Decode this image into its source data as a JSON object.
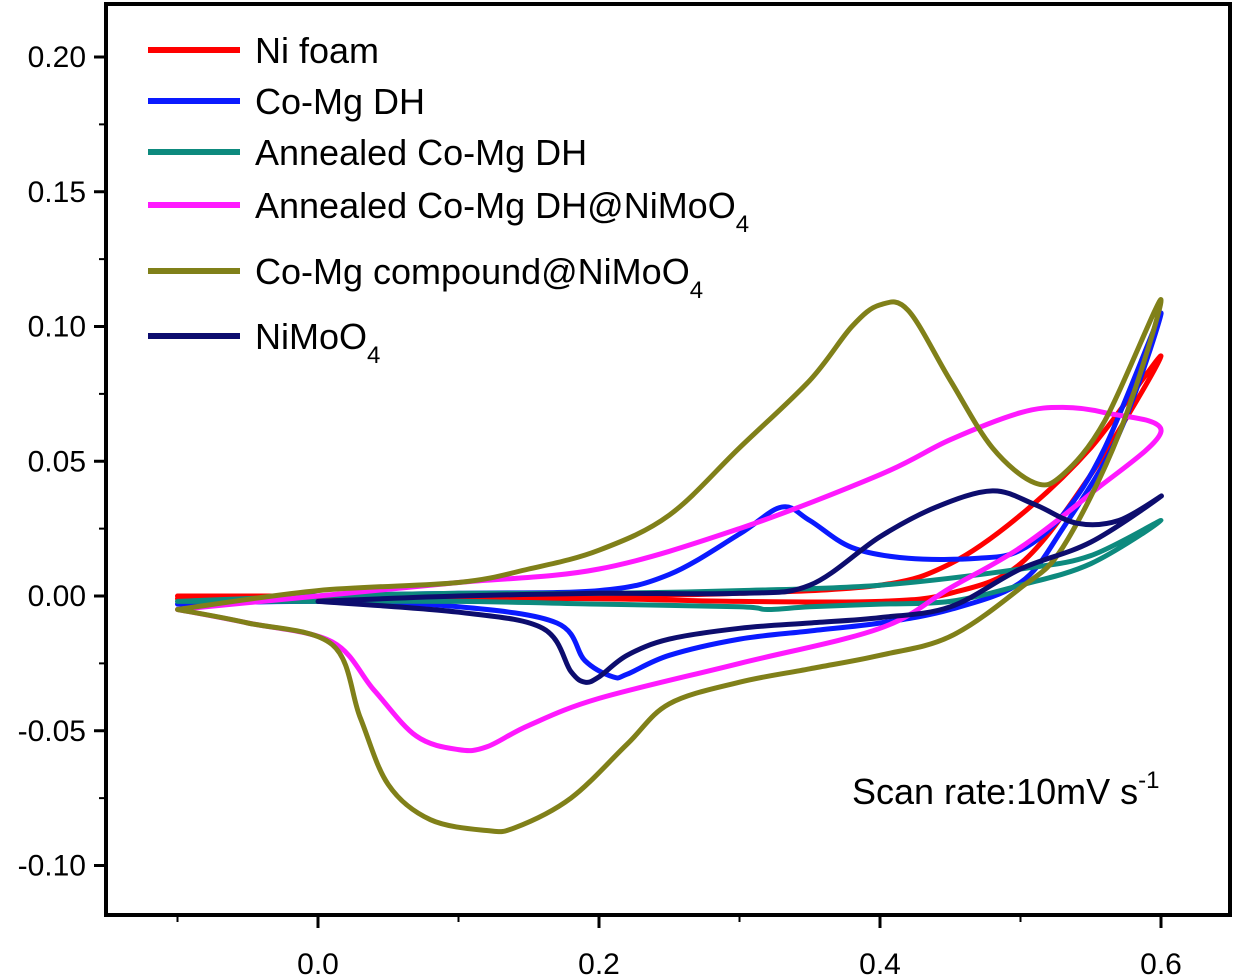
{
  "chart_data": {
    "type": "line",
    "title": "",
    "xlabel": "",
    "ylabel": "",
    "xlim": [
      -0.1,
      0.65
    ],
    "ylim": [
      -0.12,
      0.22
    ],
    "x_ticks": [
      "0.0",
      "0.2",
      "0.4",
      "0.6"
    ],
    "y_ticks": [
      "0.20",
      "0.15",
      "0.10",
      "0.05",
      "0.00",
      "-0.05",
      "-0.10"
    ],
    "x_tick_values": [
      0.0,
      0.2,
      0.4,
      0.6
    ],
    "y_tick_values": [
      0.2,
      0.15,
      0.1,
      0.05,
      0.0,
      -0.05,
      -0.1
    ],
    "grid": false,
    "legend_position": "top-left",
    "annotation": {
      "prefix": "Scan rate:10mV s",
      "sup": "-1"
    },
    "series": [
      {
        "name": "Ni foam",
        "label": "Ni foam",
        "sub": "",
        "color": "#ff0000",
        "points": [
          [
            -0.1,
            0.0
          ],
          [
            0.0,
            0.0
          ],
          [
            0.1,
            0.0
          ],
          [
            0.2,
            0.0
          ],
          [
            0.3,
            0.001
          ],
          [
            0.4,
            0.004
          ],
          [
            0.45,
            0.012
          ],
          [
            0.5,
            0.03
          ],
          [
            0.55,
            0.055
          ],
          [
            0.6,
            0.089
          ],
          [
            0.55,
            0.045
          ],
          [
            0.5,
            0.012
          ],
          [
            0.45,
            0.001
          ],
          [
            0.4,
            -0.002
          ],
          [
            0.3,
            -0.002
          ],
          [
            0.2,
            -0.001
          ],
          [
            0.1,
            -0.001
          ],
          [
            0.0,
            -0.001
          ],
          [
            -0.1,
            -0.001
          ]
        ]
      },
      {
        "name": "Co-Mg DH",
        "label": "Co-Mg DH",
        "sub": "",
        "color": "#0a1aff",
        "points": [
          [
            -0.1,
            -0.003
          ],
          [
            0.0,
            0.0
          ],
          [
            0.1,
            0.001
          ],
          [
            0.2,
            0.002
          ],
          [
            0.25,
            0.008
          ],
          [
            0.3,
            0.023
          ],
          [
            0.33,
            0.033
          ],
          [
            0.35,
            0.028
          ],
          [
            0.38,
            0.018
          ],
          [
            0.42,
            0.014
          ],
          [
            0.47,
            0.014
          ],
          [
            0.5,
            0.017
          ],
          [
            0.53,
            0.03
          ],
          [
            0.56,
            0.055
          ],
          [
            0.6,
            0.105
          ],
          [
            0.57,
            0.06
          ],
          [
            0.53,
            0.025
          ],
          [
            0.5,
            0.005
          ],
          [
            0.45,
            -0.005
          ],
          [
            0.4,
            -0.01
          ],
          [
            0.35,
            -0.013
          ],
          [
            0.3,
            -0.016
          ],
          [
            0.25,
            -0.022
          ],
          [
            0.22,
            -0.029
          ],
          [
            0.21,
            -0.03
          ],
          [
            0.19,
            -0.024
          ],
          [
            0.17,
            -0.01
          ],
          [
            0.1,
            -0.004
          ],
          [
            0.0,
            -0.002
          ],
          [
            -0.1,
            -0.003
          ]
        ]
      },
      {
        "name": "Annealed  Co-Mg DH",
        "label": "Annealed  Co-Mg DH",
        "sub": "",
        "color": "#0d8a7e",
        "points": [
          [
            -0.1,
            -0.002
          ],
          [
            0.0,
            0.0
          ],
          [
            0.1,
            0.001
          ],
          [
            0.2,
            0.001
          ],
          [
            0.3,
            0.002
          ],
          [
            0.4,
            0.004
          ],
          [
            0.5,
            0.01
          ],
          [
            0.55,
            0.015
          ],
          [
            0.6,
            0.028
          ],
          [
            0.55,
            0.012
          ],
          [
            0.5,
            0.004
          ],
          [
            0.45,
            -0.002
          ],
          [
            0.4,
            -0.003
          ],
          [
            0.35,
            -0.004
          ],
          [
            0.32,
            -0.005
          ],
          [
            0.3,
            -0.004
          ],
          [
            0.2,
            -0.003
          ],
          [
            0.1,
            -0.002
          ],
          [
            0.0,
            -0.002
          ],
          [
            -0.1,
            -0.002
          ]
        ]
      },
      {
        "name": "Annealed  Co-Mg DH@NiMoO4",
        "label": "Annealed  Co-Mg DH@NiMoO",
        "sub": "4",
        "color": "#ff19ff",
        "points": [
          [
            -0.1,
            -0.005
          ],
          [
            0.0,
            0.0
          ],
          [
            0.1,
            0.005
          ],
          [
            0.2,
            0.01
          ],
          [
            0.3,
            0.025
          ],
          [
            0.4,
            0.045
          ],
          [
            0.45,
            0.058
          ],
          [
            0.5,
            0.068
          ],
          [
            0.53,
            0.07
          ],
          [
            0.56,
            0.068
          ],
          [
            0.6,
            0.061
          ],
          [
            0.55,
            0.038
          ],
          [
            0.5,
            0.018
          ],
          [
            0.45,
            0.003
          ],
          [
            0.4,
            -0.012
          ],
          [
            0.3,
            -0.025
          ],
          [
            0.2,
            -0.038
          ],
          [
            0.15,
            -0.048
          ],
          [
            0.12,
            -0.056
          ],
          [
            0.1,
            -0.057
          ],
          [
            0.07,
            -0.052
          ],
          [
            0.04,
            -0.035
          ],
          [
            0.01,
            -0.017
          ],
          [
            -0.05,
            -0.01
          ],
          [
            -0.1,
            -0.005
          ]
        ]
      },
      {
        "name": "Co-Mg compound@NiMoO4",
        "label": "Co-Mg compound@NiMoO",
        "sub": "4",
        "color": "#808019",
        "points": [
          [
            -0.1,
            -0.005
          ],
          [
            0.0,
            0.002
          ],
          [
            0.1,
            0.005
          ],
          [
            0.15,
            0.01
          ],
          [
            0.2,
            0.017
          ],
          [
            0.25,
            0.03
          ],
          [
            0.3,
            0.055
          ],
          [
            0.35,
            0.08
          ],
          [
            0.38,
            0.1
          ],
          [
            0.4,
            0.108
          ],
          [
            0.42,
            0.106
          ],
          [
            0.45,
            0.08
          ],
          [
            0.48,
            0.055
          ],
          [
            0.51,
            0.042
          ],
          [
            0.53,
            0.045
          ],
          [
            0.56,
            0.065
          ],
          [
            0.6,
            0.11
          ],
          [
            0.57,
            0.06
          ],
          [
            0.53,
            0.018
          ],
          [
            0.5,
            0.003
          ],
          [
            0.45,
            -0.015
          ],
          [
            0.4,
            -0.022
          ],
          [
            0.35,
            -0.027
          ],
          [
            0.3,
            -0.032
          ],
          [
            0.25,
            -0.04
          ],
          [
            0.22,
            -0.055
          ],
          [
            0.18,
            -0.075
          ],
          [
            0.14,
            -0.086
          ],
          [
            0.12,
            -0.087
          ],
          [
            0.08,
            -0.083
          ],
          [
            0.05,
            -0.07
          ],
          [
            0.03,
            -0.045
          ],
          [
            0.01,
            -0.018
          ],
          [
            -0.05,
            -0.01
          ],
          [
            -0.1,
            -0.005
          ]
        ]
      },
      {
        "name": "NiMoO4",
        "label": "NiMoO",
        "sub": "4",
        "color": "#0d0d6e",
        "points": [
          [
            0.0,
            -0.002
          ],
          [
            0.1,
            0.0
          ],
          [
            0.2,
            0.001
          ],
          [
            0.3,
            0.001
          ],
          [
            0.35,
            0.004
          ],
          [
            0.4,
            0.022
          ],
          [
            0.44,
            0.033
          ],
          [
            0.48,
            0.039
          ],
          [
            0.51,
            0.034
          ],
          [
            0.54,
            0.027
          ],
          [
            0.57,
            0.028
          ],
          [
            0.6,
            0.037
          ],
          [
            0.55,
            0.02
          ],
          [
            0.5,
            0.01
          ],
          [
            0.45,
            -0.004
          ],
          [
            0.4,
            -0.008
          ],
          [
            0.35,
            -0.01
          ],
          [
            0.3,
            -0.012
          ],
          [
            0.25,
            -0.016
          ],
          [
            0.22,
            -0.022
          ],
          [
            0.2,
            -0.03
          ],
          [
            0.19,
            -0.032
          ],
          [
            0.18,
            -0.028
          ],
          [
            0.16,
            -0.012
          ],
          [
            0.1,
            -0.006
          ],
          [
            0.0,
            -0.002
          ]
        ]
      }
    ]
  }
}
